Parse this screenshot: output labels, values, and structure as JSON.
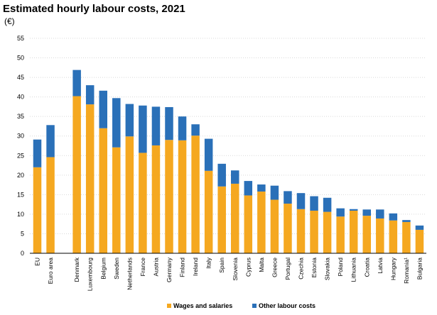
{
  "chart_data": {
    "type": "bar",
    "stacked": true,
    "title": "Estimated hourly labour costs, 2021",
    "subtitle": "(€)",
    "xlabel": "",
    "ylabel": "",
    "ylim": [
      0,
      55
    ],
    "yticks": [
      0,
      5,
      10,
      15,
      20,
      25,
      30,
      35,
      40,
      45,
      50,
      55
    ],
    "grid": true,
    "legend_position": "bottom",
    "categories": [
      "EU",
      "Euro area",
      "Denmark",
      "Luxembourg",
      "Belgium",
      "Sweden",
      "Netherlands",
      "France",
      "Austria",
      "Germany",
      "Finland",
      "Ireland",
      "Italy",
      "Spain",
      "Slovenia",
      "Cyprus",
      "Malta",
      "Greece",
      "Portugal",
      "Czechia",
      "Estonia",
      "Slovakia",
      "Poland",
      "Lithuania",
      "Croatia",
      "Latvia",
      "Hungary",
      "Romania¹",
      "Bulgaria"
    ],
    "series": [
      {
        "name": "Wages and salaries",
        "color": "#f5a820",
        "values": [
          22.0,
          24.6,
          40.2,
          38.1,
          32.0,
          27.1,
          29.9,
          25.7,
          27.6,
          29.0,
          28.9,
          30.1,
          21.1,
          17.1,
          17.8,
          14.8,
          15.8,
          13.7,
          12.7,
          11.3,
          10.9,
          10.6,
          9.4,
          10.9,
          9.6,
          8.9,
          8.4,
          8.0,
          6.0
        ]
      },
      {
        "name": "Other labour costs",
        "color": "#2a70b8",
        "values": [
          7.1,
          8.2,
          6.7,
          4.9,
          9.6,
          12.6,
          8.3,
          12.1,
          9.9,
          8.4,
          6.1,
          2.9,
          8.2,
          5.8,
          3.4,
          3.7,
          1.8,
          3.6,
          3.2,
          4.1,
          3.7,
          3.6,
          2.1,
          0.4,
          1.6,
          2.3,
          1.8,
          0.5,
          1.1
        ]
      }
    ]
  }
}
